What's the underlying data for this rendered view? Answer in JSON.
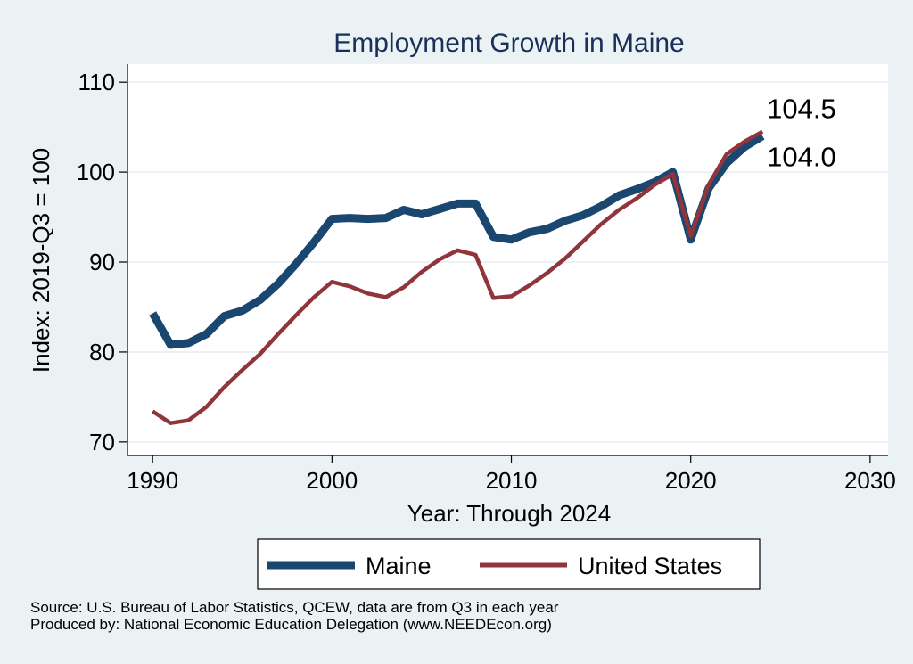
{
  "chart_data": {
    "type": "line",
    "title": "Employment Growth in Maine",
    "xlabel": "Year: Through 2024",
    "ylabel": "Index: 2019-Q3 = 100",
    "xlim": [
      1988.6,
      2031
    ],
    "ylim": [
      68.5,
      112
    ],
    "x_ticks": [
      1990,
      2000,
      2010,
      2020,
      2030
    ],
    "y_ticks": [
      70,
      80,
      90,
      100,
      110
    ],
    "grid": true,
    "legend_position": "bottom",
    "x": [
      1990,
      1991,
      1992,
      1993,
      1994,
      1995,
      1996,
      1997,
      1998,
      1999,
      2000,
      2001,
      2002,
      2003,
      2004,
      2005,
      2006,
      2007,
      2008,
      2009,
      2010,
      2011,
      2012,
      2013,
      2014,
      2015,
      2016,
      2017,
      2018,
      2019,
      2020,
      2021,
      2022,
      2023,
      2024
    ],
    "series": [
      {
        "name": "Maine",
        "color": "#1a476f",
        "values": [
          84.3,
          80.8,
          81.0,
          82.0,
          84.0,
          84.6,
          85.8,
          87.6,
          89.8,
          92.2,
          94.8,
          94.9,
          94.8,
          94.9,
          95.8,
          95.3,
          95.9,
          96.5,
          96.5,
          92.8,
          92.5,
          93.3,
          93.7,
          94.6,
          95.2,
          96.2,
          97.4,
          98.1,
          98.9,
          100.0,
          92.5,
          98.2,
          101.0,
          102.8,
          104.0
        ],
        "end_label": "104.0"
      },
      {
        "name": "United States",
        "color": "#90353b",
        "values": [
          73.4,
          72.1,
          72.4,
          73.9,
          76.1,
          78.0,
          79.8,
          82.0,
          84.1,
          86.1,
          87.8,
          87.3,
          86.5,
          86.1,
          87.2,
          88.9,
          90.3,
          91.3,
          90.8,
          86.0,
          86.2,
          87.4,
          88.8,
          90.4,
          92.3,
          94.2,
          95.8,
          97.1,
          98.6,
          99.8,
          92.9,
          98.6,
          102.0,
          103.4,
          104.5
        ],
        "end_label": "104.5"
      }
    ],
    "annotations": [
      "104.5",
      "104.0"
    ]
  },
  "source_lines": [
    "Source: U.S. Bureau of Labor Statistics, QCEW, data are from Q3 in each year",
    "Produced by: National Economic Education Delegation (www.NEEDEcon.org)"
  ]
}
